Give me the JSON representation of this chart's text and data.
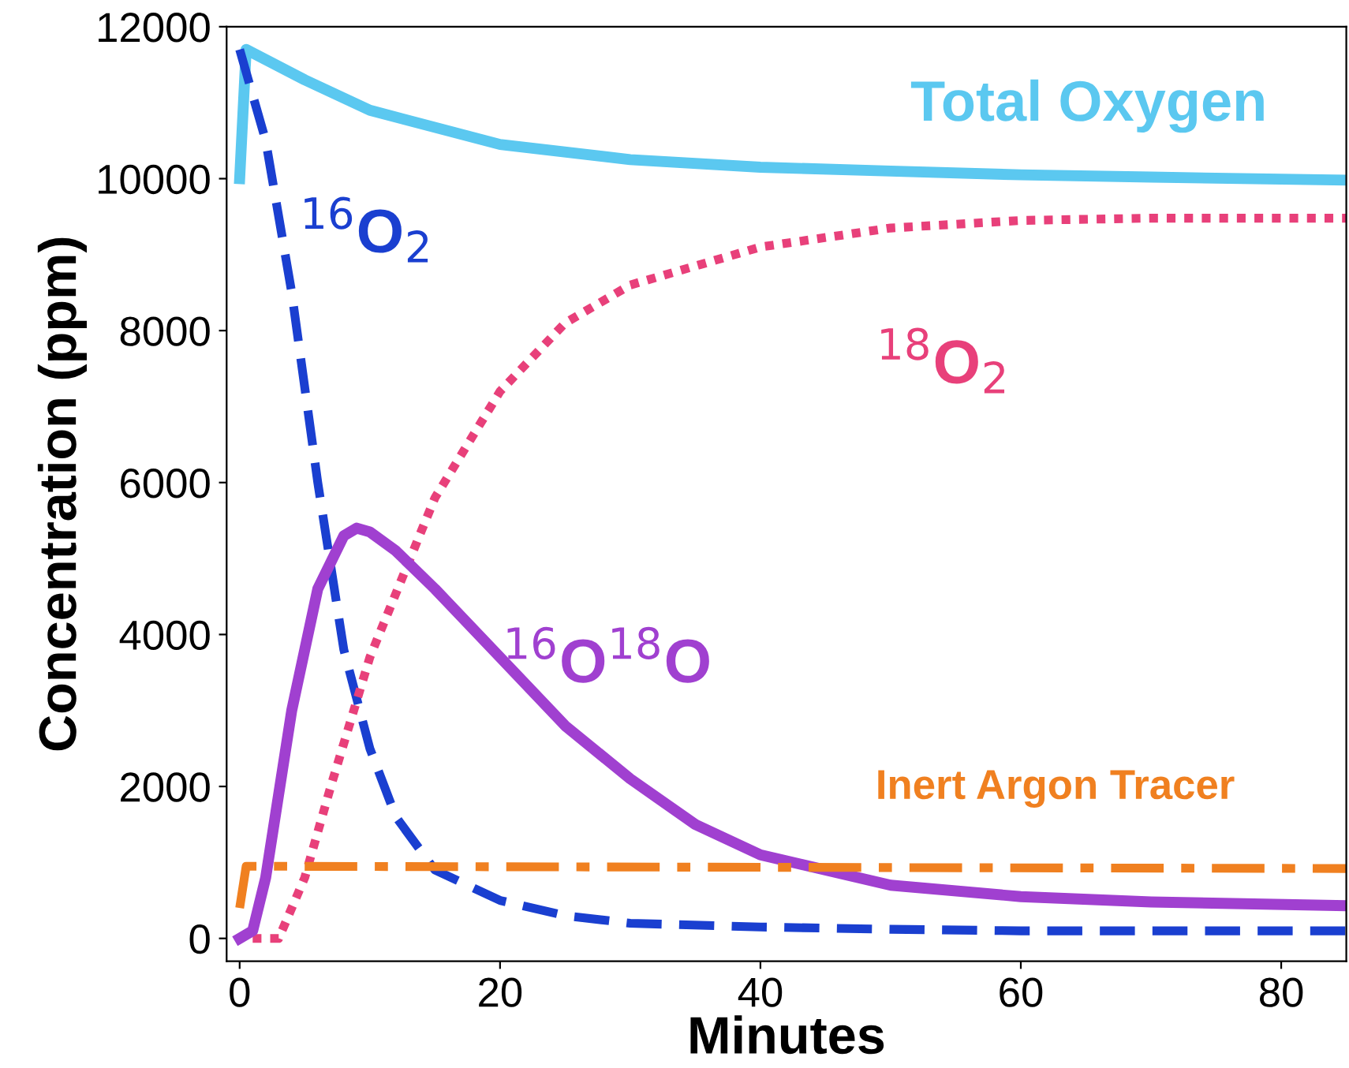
{
  "chart_data": {
    "type": "line",
    "xlabel": "Minutes",
    "ylabel": "Concentration (ppm)",
    "xlim": [
      -1,
      85
    ],
    "ylim": [
      -300,
      12000
    ],
    "xticks": [
      0,
      20,
      40,
      60,
      80
    ],
    "yticks": [
      0,
      2000,
      4000,
      6000,
      8000,
      10000,
      12000
    ],
    "grid": false,
    "marker": "none",
    "series": [
      {
        "name": "Total Oxygen",
        "color": "#5bc8f0",
        "line_style": "solid",
        "x": [
          0,
          0.5,
          5,
          10,
          20,
          30,
          40,
          50,
          60,
          70,
          85
        ],
        "values": [
          10000,
          11700,
          11300,
          10900,
          10450,
          10250,
          10150,
          10100,
          10050,
          10020,
          9980
        ]
      },
      {
        "name": "$^{16}$O$_{2}$",
        "color": "#1a3fd0",
        "line_style": "dashed",
        "x": [
          0,
          2,
          4,
          6,
          8,
          10,
          12,
          15,
          20,
          25,
          30,
          40,
          50,
          60,
          85
        ],
        "values": [
          11700,
          10500,
          8500,
          6000,
          3800,
          2500,
          1600,
          900,
          500,
          300,
          200,
          150,
          120,
          100,
          100
        ]
      },
      {
        "name": "$^{18}$O$_{2}$",
        "color": "#e8407a",
        "line_style": "dotted",
        "x": [
          1,
          3,
          5,
          7,
          10,
          15,
          20,
          25,
          30,
          40,
          50,
          60,
          70,
          85
        ],
        "values": [
          0,
          0,
          800,
          2000,
          3700,
          5800,
          7200,
          8100,
          8600,
          9100,
          9350,
          9450,
          9480,
          9480
        ]
      },
      {
        "name": "$^{16}$O$^{18}$O",
        "color": "#a040d0",
        "line_style": "solid",
        "x": [
          0,
          1,
          2,
          4,
          6,
          8,
          9,
          10,
          12,
          15,
          20,
          25,
          30,
          35,
          40,
          50,
          60,
          70,
          85
        ],
        "values": [
          0,
          100,
          800,
          3000,
          4600,
          5300,
          5400,
          5350,
          5100,
          4600,
          3700,
          2800,
          2100,
          1500,
          1100,
          700,
          550,
          480,
          430
        ]
      },
      {
        "name": "Inert Argon Tracer",
        "color": "#f08020",
        "line_style": "dashdot",
        "x": [
          0,
          0.5,
          85
        ],
        "values": [
          400,
          950,
          920
        ]
      }
    ]
  }
}
